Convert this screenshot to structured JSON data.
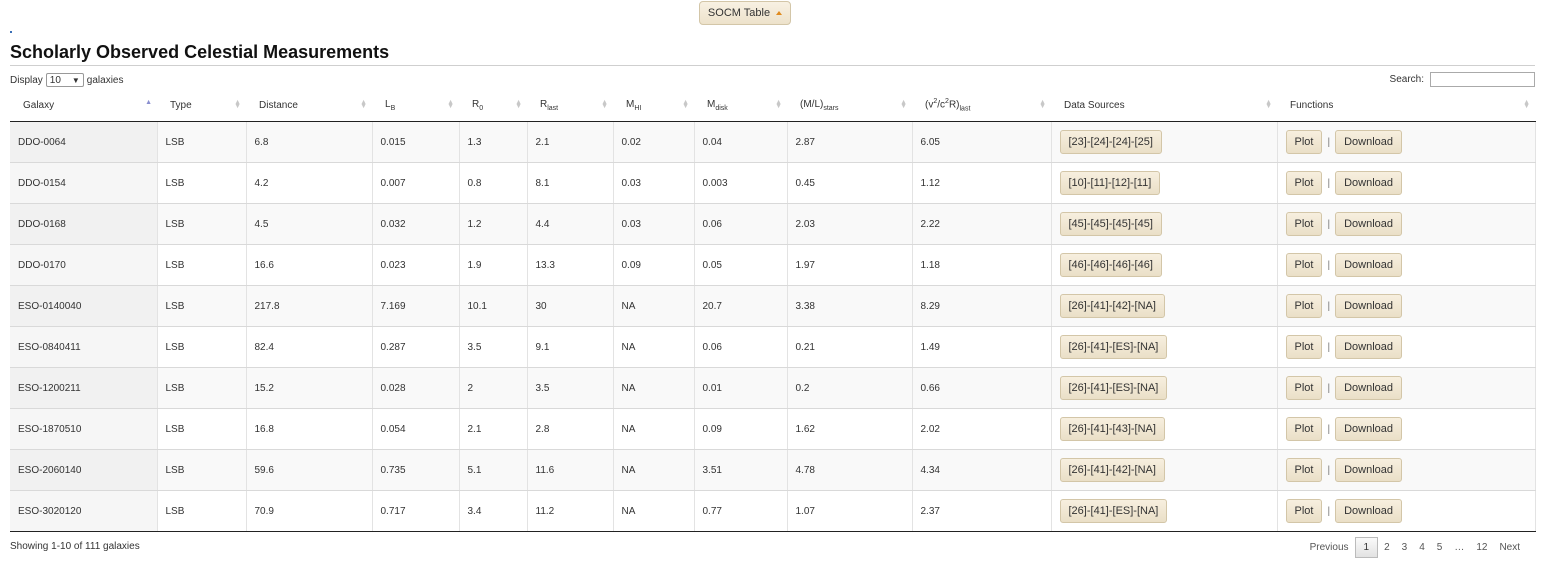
{
  "top_button": {
    "label": "SOCM Table"
  },
  "page_title": "Scholarly Observed Celestial Measurements",
  "length": {
    "prefix": "Display",
    "value": "10",
    "suffix": "galaxies"
  },
  "search": {
    "label": "Search:",
    "value": ""
  },
  "columns": [
    "Galaxy",
    "Type",
    "Distance",
    "L",
    "R",
    "R",
    "M",
    "M",
    "(M/L)",
    "(v",
    "Data Sources",
    "Functions"
  ],
  "column_subs": {
    "lb": "B",
    "r0": "0",
    "rlast": "last",
    "mhi": "HI",
    "mdisk": "disk",
    "ml": "stars",
    "v2": "last"
  },
  "v2_parts": {
    "sup1": "2",
    "mid": "/c",
    "sup2": "2",
    "end": "R)"
  },
  "rows": [
    [
      "DDO-0064",
      "LSB",
      "6.8",
      "0.015",
      "1.3",
      "2.1",
      "0.02",
      "0.04",
      "2.87",
      "6.05",
      "[23]-[24]-[24]-[25]"
    ],
    [
      "DDO-0154",
      "LSB",
      "4.2",
      "0.007",
      "0.8",
      "8.1",
      "0.03",
      "0.003",
      "0.45",
      "1.12",
      "[10]-[11]-[12]-[11]"
    ],
    [
      "DDO-0168",
      "LSB",
      "4.5",
      "0.032",
      "1.2",
      "4.4",
      "0.03",
      "0.06",
      "2.03",
      "2.22",
      "[45]-[45]-[45]-[45]"
    ],
    [
      "DDO-0170",
      "LSB",
      "16.6",
      "0.023",
      "1.9",
      "13.3",
      "0.09",
      "0.05",
      "1.97",
      "1.18",
      "[46]-[46]-[46]-[46]"
    ],
    [
      "ESO-0140040",
      "LSB",
      "217.8",
      "7.169",
      "10.1",
      "30",
      "NA",
      "20.7",
      "3.38",
      "8.29",
      "[26]-[41]-[42]-[NA]"
    ],
    [
      "ESO-0840411",
      "LSB",
      "82.4",
      "0.287",
      "3.5",
      "9.1",
      "NA",
      "0.06",
      "0.21",
      "1.49",
      "[26]-[41]-[ES]-[NA]"
    ],
    [
      "ESO-1200211",
      "LSB",
      "15.2",
      "0.028",
      "2",
      "3.5",
      "NA",
      "0.01",
      "0.2",
      "0.66",
      "[26]-[41]-[ES]-[NA]"
    ],
    [
      "ESO-1870510",
      "LSB",
      "16.8",
      "0.054",
      "2.1",
      "2.8",
      "NA",
      "0.09",
      "1.62",
      "2.02",
      "[26]-[41]-[43]-[NA]"
    ],
    [
      "ESO-2060140",
      "LSB",
      "59.6",
      "0.735",
      "5.1",
      "11.6",
      "NA",
      "3.51",
      "4.78",
      "4.34",
      "[26]-[41]-[42]-[NA]"
    ],
    [
      "ESO-3020120",
      "LSB",
      "70.9",
      "0.717",
      "3.4",
      "11.2",
      "NA",
      "0.77",
      "1.07",
      "2.37",
      "[26]-[41]-[ES]-[NA]"
    ]
  ],
  "functions": {
    "plot": "Plot",
    "separator": "|",
    "download": "Download"
  },
  "footer": {
    "info": "Showing 1-10 of 111 galaxies"
  },
  "pager": {
    "previous": "Previous",
    "pages": [
      "1",
      "2",
      "3",
      "4",
      "5"
    ],
    "ellipsis": "…",
    "last": "12",
    "next": "Next",
    "current": "1"
  },
  "colors": {
    "button_border": "#d3c6a8",
    "button_bg": "#efe5cf",
    "sort_active": "#8a8fd0",
    "caret": "#e08a1e"
  }
}
